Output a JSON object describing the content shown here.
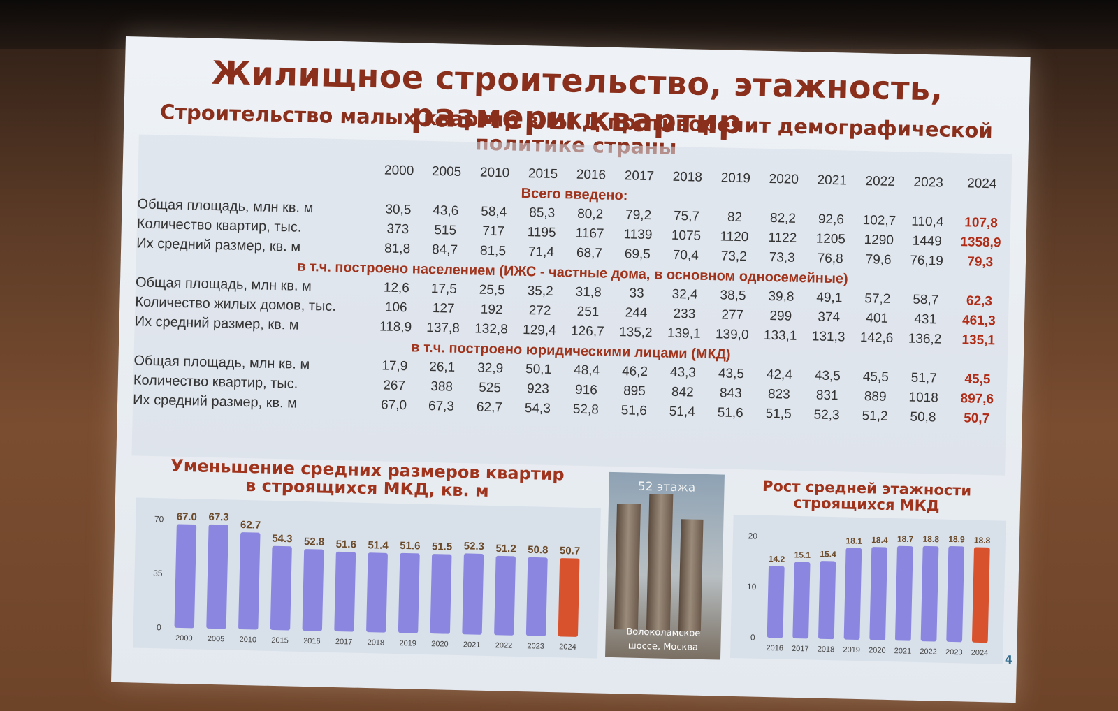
{
  "slide": {
    "title": "Жилищное строительство, этажность, размеры квартир",
    "subtitle": "Строительство малых квартир в МКД противоречит демографической политике страны",
    "page_number": "4"
  },
  "table": {
    "years": [
      "2000",
      "2005",
      "2010",
      "2015",
      "2016",
      "2017",
      "2018",
      "2019",
      "2020",
      "2021",
      "2022",
      "2023",
      "2024"
    ],
    "sections": [
      {
        "heading": "Всего введено:",
        "rows": [
          {
            "label": "Общая площадь, млн кв. м",
            "values": [
              "30,5",
              "43,6",
              "58,4",
              "85,3",
              "80,2",
              "79,2",
              "75,7",
              "82",
              "82,2",
              "92,6",
              "102,7",
              "110,4",
              "107,8"
            ]
          },
          {
            "label": "Количество квартир, тыс.",
            "values": [
              "373",
              "515",
              "717",
              "1195",
              "1167",
              "1139",
              "1075",
              "1120",
              "1122",
              "1205",
              "1290",
              "1449",
              "1358,9"
            ]
          },
          {
            "label": "Их средний размер, кв. м",
            "values": [
              "81,8",
              "84,7",
              "81,5",
              "71,4",
              "68,7",
              "69,5",
              "70,4",
              "73,2",
              "73,3",
              "76,8",
              "79,6",
              "76,19",
              "79,3"
            ]
          }
        ]
      },
      {
        "heading": "в т.ч. построено населением (ИЖС - частные дома, в основном односемейные)",
        "rows": [
          {
            "label": "Общая площадь, млн кв. м",
            "values": [
              "12,6",
              "17,5",
              "25,5",
              "35,2",
              "31,8",
              "33",
              "32,4",
              "38,5",
              "39,8",
              "49,1",
              "57,2",
              "58,7",
              "62,3"
            ]
          },
          {
            "label": "Количество жилых домов, тыс.",
            "values": [
              "106",
              "127",
              "192",
              "272",
              "251",
              "244",
              "233",
              "277",
              "299",
              "374",
              "401",
              "431",
              "461,3"
            ]
          },
          {
            "label": "Их средний размер, кв. м",
            "values": [
              "118,9",
              "137,8",
              "132,8",
              "129,4",
              "126,7",
              "135,2",
              "139,1",
              "139,0",
              "133,1",
              "131,3",
              "142,6",
              "136,2",
              "135,1"
            ]
          }
        ]
      },
      {
        "heading": "в т.ч. построено юридическими лицами (МКД)",
        "rows": [
          {
            "label": "Общая площадь, млн кв. м",
            "values": [
              "17,9",
              "26,1",
              "32,9",
              "50,1",
              "48,4",
              "46,2",
              "43,3",
              "43,5",
              "42,4",
              "43,5",
              "45,5",
              "51,7",
              "45,5"
            ]
          },
          {
            "label": "Количество квартир, тыс.",
            "values": [
              "267",
              "388",
              "525",
              "923",
              "916",
              "895",
              "842",
              "843",
              "823",
              "831",
              "889",
              "1018",
              "897,6"
            ]
          },
          {
            "label": "Их средний размер, кв. м",
            "values": [
              "67,0",
              "67,3",
              "62,7",
              "54,3",
              "52,8",
              "51,6",
              "51,4",
              "51,6",
              "51,5",
              "52,3",
              "51,2",
              "50,8",
              "50,7"
            ]
          }
        ]
      }
    ]
  },
  "photo": {
    "caption_top": "52 этажа",
    "caption_bottom_1": "Волоколамское",
    "caption_bottom_2": "шоссе, Москва"
  },
  "colors": {
    "bar": "#8b86e0",
    "bar_highlight": "#d9522e",
    "title": "#8a2f1c"
  },
  "chart_data": [
    {
      "type": "bar",
      "title": "Уменьшение средних размеров квартир в строящихся МКД, кв. м",
      "title_line1": "Уменьшение средних размеров квартир",
      "title_line2": "в строящихся МКД, кв. м",
      "categories": [
        "2000",
        "2005",
        "2010",
        "2015",
        "2016",
        "2017",
        "2018",
        "2019",
        "2020",
        "2021",
        "2022",
        "2023",
        "2024"
      ],
      "values": [
        67.0,
        67.3,
        62.7,
        54.3,
        52.8,
        51.6,
        51.4,
        51.6,
        51.5,
        52.3,
        51.2,
        50.8,
        50.7
      ],
      "data_labels": [
        "67.0",
        "67.3",
        "62.7",
        "54.3",
        "52.8",
        "51.6",
        "51.4",
        "51.6",
        "51.5",
        "52.3",
        "51.2",
        "50.8",
        "50.7"
      ],
      "highlight_last": true,
      "yticks": [
        "0",
        "35",
        "70"
      ],
      "ytick_values": [
        0,
        35,
        70
      ],
      "ylim": [
        0,
        70
      ]
    },
    {
      "type": "bar",
      "title": "Рост средней этажности строящихся МКД",
      "title_line1": "Рост средней этажности",
      "title_line2": "строящихся МКД",
      "categories": [
        "2016",
        "2017",
        "2018",
        "2019",
        "2020",
        "2021",
        "2022",
        "2023",
        "2024"
      ],
      "values": [
        14.2,
        15.1,
        15.4,
        18.1,
        18.4,
        18.7,
        18.8,
        18.9,
        18.8
      ],
      "data_labels": [
        "14.2",
        "15.1",
        "15.4",
        "18.1",
        "18.4",
        "18.7",
        "18.8",
        "18.9",
        "18.8"
      ],
      "highlight_last": true,
      "yticks": [
        "0",
        "10",
        "20"
      ],
      "ytick_values": [
        0,
        10,
        20
      ],
      "ylim": [
        0,
        20
      ]
    }
  ]
}
